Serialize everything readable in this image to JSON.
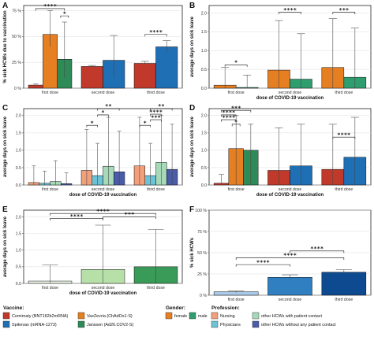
{
  "colors": {
    "comirnaty": "#c0392b",
    "spikevax": "#1f6fb5",
    "vaxzevria": "#e67e22",
    "janssen": "#2e8b57",
    "female": "#e67e22",
    "male": "#2e9e6e",
    "nursing": "#f2a07b",
    "physicians": "#6cc3d5",
    "other_contact": "#a6d9b8",
    "other_nocontact": "#4a5ba8",
    "e_first": "#eaf5e6",
    "e_second": "#b7e0a8",
    "e_third": "#3a9a57",
    "f_first": "#a9c9e8",
    "f_second": "#2f7fc1",
    "f_third": "#0d4a8f"
  },
  "chart_data": [
    {
      "panel": "A",
      "type": "bar",
      "ylabel": "% sick HCWs due to vaccination",
      "xlabel": "",
      "ylim": [
        0,
        80
      ],
      "yticks": [
        "0 %",
        "25 %",
        "50 %",
        "75 %"
      ],
      "ytick_values": [
        0,
        25,
        50,
        75
      ],
      "categories": [
        "first dose",
        "second dose",
        "third dose"
      ],
      "series_keys": [
        "comirnaty",
        "spikevax",
        "vaxzevria",
        "janssen"
      ],
      "bars": [
        {
          "cat": 0,
          "key": "comirnaty",
          "value": 3,
          "lo": 2,
          "hi": 4
        },
        {
          "cat": 0,
          "key": "vaxzevria",
          "value": 52,
          "lo": 40,
          "hi": 75
        },
        {
          "cat": 0,
          "key": "janssen",
          "value": 28,
          "lo": 10,
          "hi": 64
        },
        {
          "cat": 1,
          "key": "comirnaty",
          "value": 21,
          "lo": 20,
          "hi": 22
        },
        {
          "cat": 1,
          "key": "spikevax",
          "value": 27,
          "lo": 10,
          "hi": 51
        },
        {
          "cat": 2,
          "key": "comirnaty",
          "value": 24,
          "lo": 23,
          "hi": 26
        },
        {
          "cat": 2,
          "key": "spikevax",
          "value": 40,
          "lo": 34,
          "hi": 46
        }
      ],
      "sig": [
        {
          "from": [
            0,
            0
          ],
          "to": [
            0,
            2
          ],
          "label": "****",
          "y": 77
        },
        {
          "from": [
            0,
            2
          ],
          "to": [
            0,
            2
          ],
          "label": "*",
          "y": 70
        },
        {
          "from": [
            2,
            0
          ],
          "to": [
            2,
            1
          ],
          "label": "****",
          "y": 52
        }
      ]
    },
    {
      "panel": "B",
      "type": "bar",
      "ylabel": "average days on sick leave",
      "xlabel": "dose of COVID-19 vaccination",
      "ylim": [
        0,
        2.2
      ],
      "yticks": [
        "0.0",
        "0.5",
        "1.0",
        "1.5",
        "2.0"
      ],
      "ytick_values": [
        0,
        0.5,
        1,
        1.5,
        2
      ],
      "categories": [
        "first dose",
        "second dose",
        "third dose"
      ],
      "series_keys": [
        "female",
        "male"
      ],
      "bars": [
        {
          "cat": 0,
          "key": "female",
          "value": 0.08,
          "lo": 0,
          "hi": 0.55
        },
        {
          "cat": 0,
          "key": "male",
          "value": 0.02,
          "lo": 0,
          "hi": 0.35
        },
        {
          "cat": 1,
          "key": "female",
          "value": 0.48,
          "lo": 0,
          "hi": 1.8
        },
        {
          "cat": 1,
          "key": "male",
          "value": 0.24,
          "lo": 0,
          "hi": 1.45
        },
        {
          "cat": 2,
          "key": "female",
          "value": 0.55,
          "lo": 0,
          "hi": 1.85
        },
        {
          "cat": 2,
          "key": "male",
          "value": 0.29,
          "lo": 0,
          "hi": 1.6
        }
      ],
      "sig": [
        {
          "from": [
            0,
            0
          ],
          "to": [
            0,
            1
          ],
          "label": "*",
          "y": 0.62
        },
        {
          "from": [
            1,
            0
          ],
          "to": [
            1,
            1
          ],
          "label": "****",
          "y": 2.02
        },
        {
          "from": [
            2,
            0
          ],
          "to": [
            2,
            1
          ],
          "label": "***",
          "y": 2.02
        }
      ]
    },
    {
      "panel": "C",
      "type": "bar",
      "ylabel": "average days on sick leave",
      "xlabel": "dose of COVID-19 vaccination",
      "ylim": [
        0,
        2.2
      ],
      "yticks": [
        "0.0",
        "0.5",
        "1.0",
        "1.5",
        "2.0"
      ],
      "ytick_values": [
        0,
        0.5,
        1,
        1.5,
        2
      ],
      "categories": [
        "first dose",
        "second dose",
        "third dose"
      ],
      "series_keys": [
        "nursing",
        "physicians",
        "other_contact",
        "other_nocontact"
      ],
      "bars": [
        {
          "cat": 0,
          "key": "nursing",
          "value": 0.07,
          "lo": 0,
          "hi": 0.55
        },
        {
          "cat": 0,
          "key": "physicians",
          "value": 0.05,
          "lo": 0,
          "hi": 0.4
        },
        {
          "cat": 0,
          "key": "other_contact",
          "value": 0.1,
          "lo": 0,
          "hi": 0.7
        },
        {
          "cat": 0,
          "key": "other_nocontact",
          "value": 0.04,
          "lo": 0,
          "hi": 0.35
        },
        {
          "cat": 1,
          "key": "nursing",
          "value": 0.42,
          "lo": 0,
          "hi": 1.6
        },
        {
          "cat": 1,
          "key": "physicians",
          "value": 0.27,
          "lo": 0,
          "hi": 1.2
        },
        {
          "cat": 1,
          "key": "other_contact",
          "value": 0.54,
          "lo": 0,
          "hi": 1.95
        },
        {
          "cat": 1,
          "key": "other_nocontact",
          "value": 0.38,
          "lo": 0,
          "hi": 1.55
        },
        {
          "cat": 2,
          "key": "nursing",
          "value": 0.55,
          "lo": 0,
          "hi": 1.95
        },
        {
          "cat": 2,
          "key": "physicians",
          "value": 0.27,
          "lo": 0,
          "hi": 1.2
        },
        {
          "cat": 2,
          "key": "other_contact",
          "value": 0.65,
          "lo": 0,
          "hi": 2.0
        },
        {
          "cat": 2,
          "key": "other_nocontact",
          "value": 0.45,
          "lo": 0,
          "hi": 1.75
        }
      ],
      "sig": [
        {
          "from": [
            1,
            0
          ],
          "to": [
            1,
            1
          ],
          "label": "*",
          "y": 1.72
        },
        {
          "from": [
            1,
            1
          ],
          "to": [
            1,
            2
          ],
          "label": "*",
          "y": 2.02
        },
        {
          "from": [
            1,
            1
          ],
          "to": [
            1,
            3
          ],
          "label": "**",
          "y": 2.2
        },
        {
          "from": [
            2,
            0
          ],
          "to": [
            2,
            1
          ],
          "label": "*",
          "y": 1.72
        },
        {
          "from": [
            2,
            1
          ],
          "to": [
            2,
            2
          ],
          "label": "***",
          "y": 1.88
        },
        {
          "from": [
            2,
            1
          ],
          "to": [
            2,
            2
          ],
          "label": "****",
          "y": 2.04
        },
        {
          "from": [
            2,
            1
          ],
          "to": [
            2,
            3
          ],
          "label": "**",
          "y": 2.2
        }
      ]
    },
    {
      "panel": "D",
      "type": "bar",
      "ylabel": "average days on sick leave",
      "xlabel": "dose of COVID-19 vaccination",
      "ylim": [
        0,
        2.2
      ],
      "yticks": [
        "0.0",
        "0.5",
        "1.0",
        "1.5",
        "2.0"
      ],
      "ytick_values": [
        0,
        0.5,
        1,
        1.5,
        2
      ],
      "categories": [
        "first dose",
        "second dose",
        "third dose"
      ],
      "series_keys": [
        "comirnaty",
        "vaxzevria",
        "janssen",
        "spikevax"
      ],
      "bars": [
        {
          "cat": 0,
          "key": "comirnaty",
          "value": 0.05,
          "lo": 0,
          "hi": 0.3
        },
        {
          "cat": 0,
          "key": "vaxzevria",
          "value": 1.05,
          "lo": 0,
          "hi": 2.0
        },
        {
          "cat": 0,
          "key": "janssen",
          "value": 1.0,
          "lo": 0,
          "hi": 1.75
        },
        {
          "cat": 1,
          "key": "comirnaty",
          "value": 0.42,
          "lo": 0,
          "hi": 1.65
        },
        {
          "cat": 1,
          "key": "spikevax",
          "value": 0.55,
          "lo": 0,
          "hi": 1.75
        },
        {
          "cat": 2,
          "key": "comirnaty",
          "value": 0.45,
          "lo": 0,
          "hi": 1.75
        },
        {
          "cat": 2,
          "key": "spikevax",
          "value": 0.8,
          "lo": 0,
          "hi": 1.95
        }
      ],
      "sig": [
        {
          "from": [
            0,
            0
          ],
          "to": [
            0,
            2
          ],
          "label": "***",
          "y": 2.15
        },
        {
          "from": [
            0,
            0
          ],
          "to": [
            0,
            1
          ],
          "label": "****",
          "y": 2.02
        },
        {
          "from": [
            0,
            0
          ],
          "to": [
            0,
            1
          ],
          "label": "****",
          "y": 1.88
        },
        {
          "from": [
            0,
            1
          ],
          "to": [
            0,
            1
          ],
          "label": "*",
          "y": 1.75
        },
        {
          "from": [
            2,
            0
          ],
          "to": [
            2,
            1
          ],
          "label": "****",
          "y": 1.38
        }
      ]
    },
    {
      "panel": "E",
      "type": "bar",
      "ylabel": "average days on sick leave",
      "xlabel": "dose of COVID-19 vaccination",
      "ylim": [
        0,
        2.2
      ],
      "yticks": [
        "0.0",
        "0.5",
        "1.0",
        "1.5",
        "2.0"
      ],
      "ytick_values": [
        0,
        0.5,
        1,
        1.5,
        2
      ],
      "categories": [
        "first dose",
        "second dose",
        "third dose"
      ],
      "series_keys": [
        "e_first",
        "e_second",
        "e_third"
      ],
      "bars": [
        {
          "cat": 0,
          "key": "e_first",
          "value": 0.07,
          "lo": 0,
          "hi": 0.55
        },
        {
          "cat": 1,
          "key": "e_second",
          "value": 0.42,
          "lo": 0,
          "hi": 1.75
        },
        {
          "cat": 2,
          "key": "e_third",
          "value": 0.5,
          "lo": 0,
          "hi": 1.62
        }
      ],
      "sig": [
        {
          "from": [
            0,
            0
          ],
          "to": [
            2,
            0
          ],
          "label": "****",
          "y": 2.1
        },
        {
          "from": [
            0,
            0
          ],
          "to": [
            1,
            0
          ],
          "label": "****",
          "y": 1.95
        },
        {
          "from": [
            1,
            0
          ],
          "to": [
            2,
            0
          ],
          "label": "***",
          "y": 2.0
        }
      ]
    },
    {
      "panel": "F",
      "type": "bar",
      "ylabel": "% sick HCWs",
      "xlabel": "",
      "ylim": [
        0,
        100
      ],
      "yticks": [
        "0 %",
        "25 %",
        "50 %",
        "75 %",
        "100 %"
      ],
      "ytick_values": [
        0,
        25,
        50,
        75,
        100
      ],
      "categories": [
        "first dose",
        "second dose",
        "third dose"
      ],
      "series_keys": [
        "f_first",
        "f_second",
        "f_third"
      ],
      "bars": [
        {
          "cat": 0,
          "key": "f_first",
          "value": 4,
          "lo": 3,
          "hi": 5
        },
        {
          "cat": 1,
          "key": "f_second",
          "value": 21,
          "lo": 19,
          "hi": 24
        },
        {
          "cat": 2,
          "key": "f_third",
          "value": 27,
          "lo": 25,
          "hi": 30
        }
      ],
      "sig": [
        {
          "from": [
            0,
            0
          ],
          "to": [
            1,
            0
          ],
          "label": "****",
          "y": 36
        },
        {
          "from": [
            0,
            0
          ],
          "to": [
            2,
            0
          ],
          "label": "****",
          "y": 44
        },
        {
          "from": [
            1,
            0
          ],
          "to": [
            2,
            0
          ],
          "label": "****",
          "y": 52
        }
      ]
    }
  ],
  "legend": {
    "vaccine": {
      "title": "Vaccine:",
      "items": [
        {
          "key": "comirnaty",
          "label": "Comirnaty (BNT162b2mRNA)"
        },
        {
          "key": "vaxzevria",
          "label": "VaxZevria (ChAdOx1-S)"
        },
        {
          "key": "spikevax",
          "label": "Spikevax (mRNA-1273)"
        },
        {
          "key": "janssen",
          "label": "Janssen (Ad26.COV2-S)"
        }
      ]
    },
    "gender": {
      "title": "Gender:",
      "items": [
        {
          "key": "female",
          "label": "female"
        },
        {
          "key": "male",
          "label": "male"
        }
      ]
    },
    "profession": {
      "title": "Profession:",
      "items": [
        {
          "key": "nursing",
          "label": "Nursing"
        },
        {
          "key": "other_contact",
          "label": "other HCWs with patient contact"
        },
        {
          "key": "physicians",
          "label": "Physicians"
        },
        {
          "key": "other_nocontact",
          "label": "other HCWs without any patient contact"
        }
      ]
    }
  }
}
